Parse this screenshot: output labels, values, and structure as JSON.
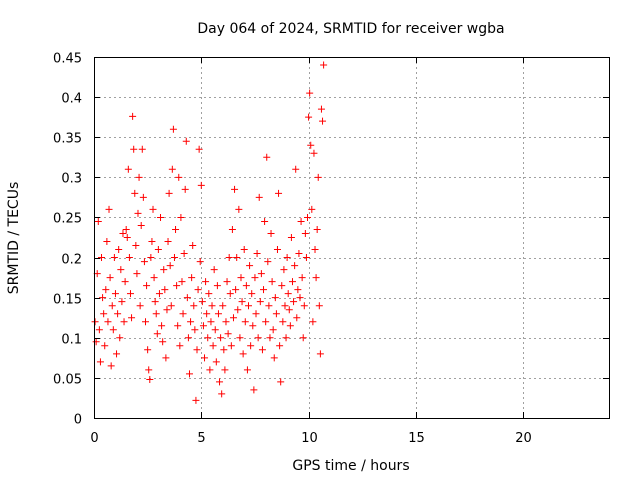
{
  "chart_data": {
    "type": "scatter",
    "title": "Day 064 of 2024, SRMTID for receiver wgba",
    "xlabel": "GPS time / hours",
    "ylabel": "SRMTID / TECUs",
    "xlim": [
      0,
      24
    ],
    "ylim": [
      0,
      0.45
    ],
    "xticks": [
      0,
      5,
      10,
      15,
      20
    ],
    "xtick_labels": [
      "0",
      "5",
      "10",
      "15",
      "20"
    ],
    "yticks": [
      0,
      0.05,
      0.1,
      0.15,
      0.2,
      0.25,
      0.3,
      0.35,
      0.4,
      0.45
    ],
    "ytick_labels": [
      "0",
      "0.05",
      "0.1",
      "0.15",
      "0.2",
      "0.25",
      "0.3",
      "0.35",
      "0.4",
      "0.45"
    ],
    "grid": true,
    "marker": "plus",
    "color": "#ff0000",
    "series": [
      {
        "points": [
          [
            0.05,
            0.12
          ],
          [
            0.1,
            0.095
          ],
          [
            0.15,
            0.18
          ],
          [
            0.2,
            0.245
          ],
          [
            0.25,
            0.11
          ],
          [
            0.3,
            0.07
          ],
          [
            0.35,
            0.2
          ],
          [
            0.4,
            0.15
          ],
          [
            0.45,
            0.13
          ],
          [
            0.5,
            0.09
          ],
          [
            0.55,
            0.16
          ],
          [
            0.6,
            0.22
          ],
          [
            0.65,
            0.12
          ],
          [
            0.7,
            0.26
          ],
          [
            0.75,
            0.175
          ],
          [
            0.8,
            0.065
          ],
          [
            0.85,
            0.14
          ],
          [
            0.9,
            0.11
          ],
          [
            0.95,
            0.2
          ],
          [
            1.0,
            0.155
          ],
          [
            1.05,
            0.08
          ],
          [
            1.1,
            0.13
          ],
          [
            1.15,
            0.21
          ],
          [
            1.2,
            0.1
          ],
          [
            1.25,
            0.185
          ],
          [
            1.3,
            0.145
          ],
          [
            1.35,
            0.23
          ],
          [
            1.4,
            0.12
          ],
          [
            1.45,
            0.17
          ],
          [
            1.5,
            0.235
          ],
          [
            1.55,
            0.225
          ],
          [
            1.6,
            0.31
          ],
          [
            1.65,
            0.2
          ],
          [
            1.7,
            0.155
          ],
          [
            1.75,
            0.125
          ],
          [
            1.8,
            0.376
          ],
          [
            1.85,
            0.335
          ],
          [
            1.9,
            0.28
          ],
          [
            1.95,
            0.215
          ],
          [
            2.0,
            0.18
          ],
          [
            2.05,
            0.255
          ],
          [
            2.1,
            0.3
          ],
          [
            2.15,
            0.14
          ],
          [
            2.2,
            0.24
          ],
          [
            2.25,
            0.335
          ],
          [
            2.3,
            0.275
          ],
          [
            2.35,
            0.195
          ],
          [
            2.4,
            0.12
          ],
          [
            2.45,
            0.165
          ],
          [
            2.5,
            0.085
          ],
          [
            2.55,
            0.06
          ],
          [
            2.6,
            0.048
          ],
          [
            2.65,
            0.2
          ],
          [
            2.7,
            0.22
          ],
          [
            2.75,
            0.26
          ],
          [
            2.8,
            0.175
          ],
          [
            2.85,
            0.145
          ],
          [
            2.9,
            0.13
          ],
          [
            2.95,
            0.105
          ],
          [
            3.0,
            0.21
          ],
          [
            3.05,
            0.155
          ],
          [
            3.1,
            0.25
          ],
          [
            3.15,
            0.115
          ],
          [
            3.2,
            0.095
          ],
          [
            3.25,
            0.185
          ],
          [
            3.3,
            0.16
          ],
          [
            3.35,
            0.075
          ],
          [
            3.4,
            0.135
          ],
          [
            3.45,
            0.22
          ],
          [
            3.5,
            0.28
          ],
          [
            3.55,
            0.19
          ],
          [
            3.6,
            0.14
          ],
          [
            3.65,
            0.31
          ],
          [
            3.7,
            0.36
          ],
          [
            3.75,
            0.2
          ],
          [
            3.8,
            0.235
          ],
          [
            3.85,
            0.165
          ],
          [
            3.9,
            0.115
          ],
          [
            3.95,
            0.3
          ],
          [
            4.0,
            0.09
          ],
          [
            4.05,
            0.25
          ],
          [
            4.1,
            0.17
          ],
          [
            4.15,
            0.13
          ],
          [
            4.2,
            0.205
          ],
          [
            4.25,
            0.285
          ],
          [
            4.3,
            0.345
          ],
          [
            4.35,
            0.15
          ],
          [
            4.4,
            0.1
          ],
          [
            4.45,
            0.055
          ],
          [
            4.5,
            0.12
          ],
          [
            4.55,
            0.175
          ],
          [
            4.6,
            0.215
          ],
          [
            4.65,
            0.14
          ],
          [
            4.7,
            0.11
          ],
          [
            4.75,
            0.022
          ],
          [
            4.8,
            0.085
          ],
          [
            4.85,
            0.16
          ],
          [
            4.9,
            0.335
          ],
          [
            4.95,
            0.195
          ],
          [
            5.0,
            0.29
          ],
          [
            5.05,
            0.145
          ],
          [
            5.1,
            0.115
          ],
          [
            5.15,
            0.075
          ],
          [
            5.2,
            0.17
          ],
          [
            5.25,
            0.13
          ],
          [
            5.3,
            0.1
          ],
          [
            5.35,
            0.155
          ],
          [
            5.4,
            0.06
          ],
          [
            5.45,
            0.12
          ],
          [
            5.5,
            0.14
          ],
          [
            5.55,
            0.09
          ],
          [
            5.6,
            0.185
          ],
          [
            5.65,
            0.11
          ],
          [
            5.7,
            0.07
          ],
          [
            5.75,
            0.165
          ],
          [
            5.8,
            0.13
          ],
          [
            5.85,
            0.045
          ],
          [
            5.9,
            0.1
          ],
          [
            5.95,
            0.03
          ],
          [
            6.0,
            0.14
          ],
          [
            6.05,
            0.085
          ],
          [
            6.1,
            0.06
          ],
          [
            6.15,
            0.12
          ],
          [
            6.2,
            0.17
          ],
          [
            6.25,
            0.105
          ],
          [
            6.3,
            0.2
          ],
          [
            6.35,
            0.155
          ],
          [
            6.4,
            0.09
          ],
          [
            6.45,
            0.235
          ],
          [
            6.5,
            0.125
          ],
          [
            6.55,
            0.285
          ],
          [
            6.6,
            0.16
          ],
          [
            6.65,
            0.2
          ],
          [
            6.7,
            0.135
          ],
          [
            6.75,
            0.26
          ],
          [
            6.8,
            0.1
          ],
          [
            6.85,
            0.175
          ],
          [
            6.9,
            0.145
          ],
          [
            6.95,
            0.08
          ],
          [
            7.0,
            0.21
          ],
          [
            7.05,
            0.12
          ],
          [
            7.1,
            0.165
          ],
          [
            7.15,
            0.06
          ],
          [
            7.2,
            0.14
          ],
          [
            7.25,
            0.19
          ],
          [
            7.3,
            0.09
          ],
          [
            7.35,
            0.155
          ],
          [
            7.4,
            0.115
          ],
          [
            7.45,
            0.035
          ],
          [
            7.5,
            0.175
          ],
          [
            7.55,
            0.13
          ],
          [
            7.6,
            0.205
          ],
          [
            7.65,
            0.1
          ],
          [
            7.7,
            0.275
          ],
          [
            7.75,
            0.145
          ],
          [
            7.8,
            0.18
          ],
          [
            7.85,
            0.085
          ],
          [
            7.9,
            0.16
          ],
          [
            7.95,
            0.245
          ],
          [
            8.0,
            0.12
          ],
          [
            8.05,
            0.325
          ],
          [
            8.1,
            0.195
          ],
          [
            8.15,
            0.14
          ],
          [
            8.2,
            0.1
          ],
          [
            8.25,
            0.23
          ],
          [
            8.3,
            0.17
          ],
          [
            8.35,
            0.11
          ],
          [
            8.4,
            0.075
          ],
          [
            8.45,
            0.15
          ],
          [
            8.5,
            0.13
          ],
          [
            8.55,
            0.21
          ],
          [
            8.6,
            0.28
          ],
          [
            8.65,
            0.09
          ],
          [
            8.7,
            0.045
          ],
          [
            8.75,
            0.165
          ],
          [
            8.8,
            0.12
          ],
          [
            8.85,
            0.185
          ],
          [
            8.9,
            0.14
          ],
          [
            8.95,
            0.1
          ],
          [
            9.0,
            0.2
          ],
          [
            9.05,
            0.155
          ],
          [
            9.1,
            0.135
          ],
          [
            9.15,
            0.115
          ],
          [
            9.2,
            0.225
          ],
          [
            9.25,
            0.17
          ],
          [
            9.3,
            0.145
          ],
          [
            9.35,
            0.19
          ],
          [
            9.4,
            0.31
          ],
          [
            9.45,
            0.125
          ],
          [
            9.5,
            0.16
          ],
          [
            9.55,
            0.205
          ],
          [
            9.6,
            0.15
          ],
          [
            9.65,
            0.245
          ],
          [
            9.7,
            0.175
          ],
          [
            9.75,
            0.1
          ],
          [
            9.8,
            0.14
          ],
          [
            9.85,
            0.23
          ],
          [
            9.9,
            0.2
          ],
          [
            9.95,
            0.25
          ],
          [
            10.0,
            0.375
          ],
          [
            10.05,
            0.405
          ],
          [
            10.1,
            0.34
          ],
          [
            10.15,
            0.26
          ],
          [
            10.2,
            0.12
          ],
          [
            10.25,
            0.33
          ],
          [
            10.3,
            0.21
          ],
          [
            10.35,
            0.175
          ],
          [
            10.4,
            0.235
          ],
          [
            10.45,
            0.3
          ],
          [
            10.5,
            0.14
          ],
          [
            10.55,
            0.08
          ],
          [
            10.6,
            0.385
          ],
          [
            10.65,
            0.37
          ],
          [
            10.7,
            0.44
          ]
        ]
      }
    ]
  }
}
